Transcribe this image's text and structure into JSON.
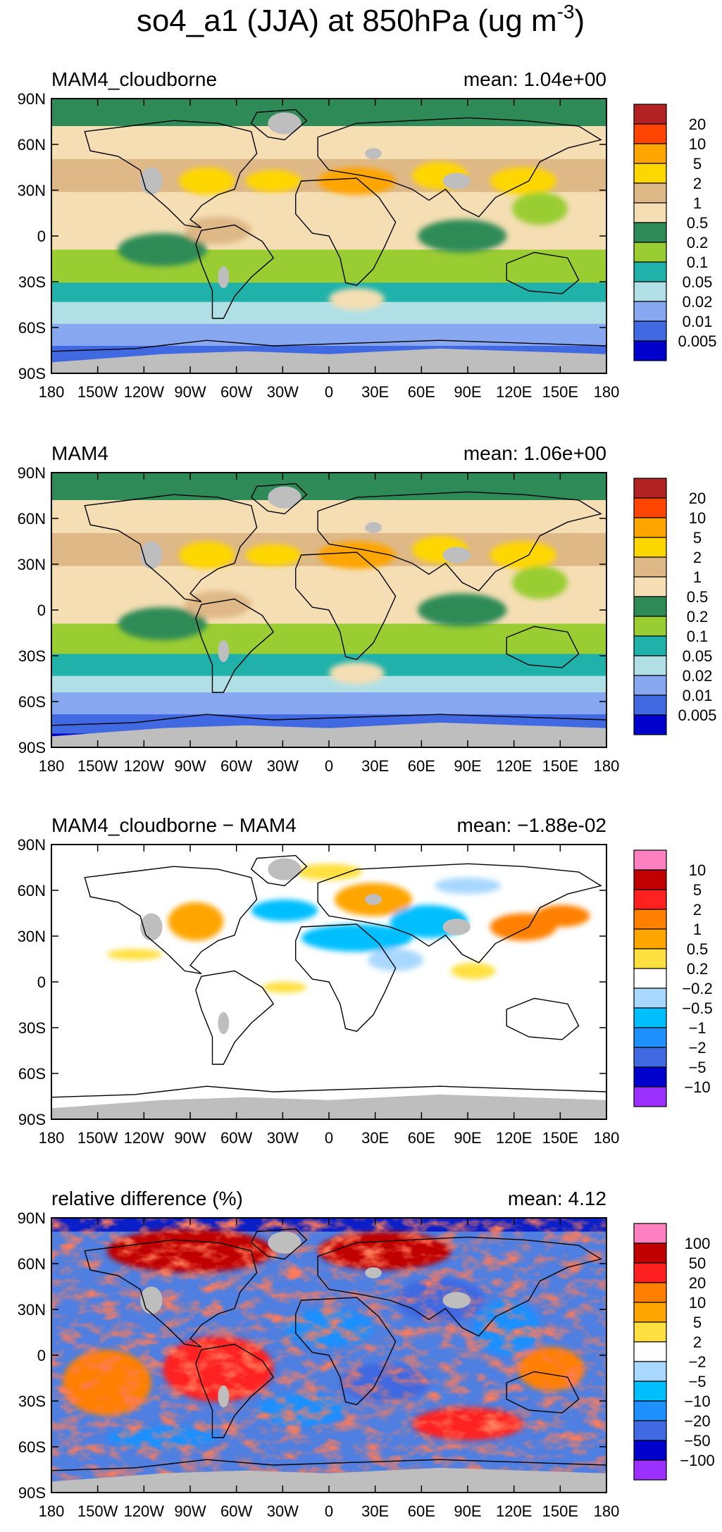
{
  "title": {
    "main": "so4_a1 (JJA) at 850hPa (ug m",
    "sup": "-3",
    "close": ")"
  },
  "lat_labels": [
    "90N",
    "60N",
    "30N",
    "0",
    "30S",
    "60S",
    "90S"
  ],
  "lon_labels": [
    "180",
    "150W",
    "120W",
    "90W",
    "60W",
    "30W",
    "0",
    "30E",
    "60E",
    "90E",
    "120E",
    "150E",
    "180"
  ],
  "panels": [
    {
      "name": "MAM4_cloudborne",
      "mean_label": "mean:",
      "mean_value": "1.04e+00",
      "colorbar": {
        "colors": [
          "#b22222",
          "#ff4500",
          "#ffa500",
          "#ffd700",
          "#deb887",
          "#f5deb3",
          "#2e8b57",
          "#9acd32",
          "#20b2aa",
          "#b0e0e6",
          "#87a8f0",
          "#4169e1",
          "#0000cd"
        ],
        "labels": [
          "20",
          "10",
          "5",
          "2",
          "1",
          "0.5",
          "0.2",
          "0.1",
          "0.05",
          "0.02",
          "0.01",
          "0.005"
        ]
      }
    },
    {
      "name": "MAM4",
      "mean_label": "mean:",
      "mean_value": "1.06e+00",
      "colorbar": {
        "colors": [
          "#b22222",
          "#ff4500",
          "#ffa500",
          "#ffd700",
          "#deb887",
          "#f5deb3",
          "#2e8b57",
          "#9acd32",
          "#20b2aa",
          "#b0e0e6",
          "#87a8f0",
          "#4169e1",
          "#0000cd"
        ],
        "labels": [
          "20",
          "10",
          "5",
          "2",
          "1",
          "0.5",
          "0.2",
          "0.1",
          "0.05",
          "0.02",
          "0.01",
          "0.005"
        ]
      }
    },
    {
      "name": "MAM4_cloudborne − MAM4",
      "mean_label": "mean:",
      "mean_value": "−1.88e-02",
      "colorbar": {
        "colors": [
          "#ff80c0",
          "#c00000",
          "#ff2020",
          "#ff8000",
          "#ffa500",
          "#ffe040",
          "#ffffff",
          "#a8d8ff",
          "#00bfff",
          "#1e90ff",
          "#4169e1",
          "#0000cd",
          "#9b30ff"
        ],
        "labels": [
          "10",
          "5",
          "2",
          "1",
          "0.5",
          "0.2",
          "−0.2",
          "−0.5",
          "−1",
          "−2",
          "−5",
          "−10"
        ]
      }
    },
    {
      "name": "relative difference (%)",
      "mean_label": "mean:",
      "mean_value": "4.12",
      "colorbar": {
        "colors": [
          "#ff80c0",
          "#c00000",
          "#ff2020",
          "#ff8000",
          "#ffa500",
          "#ffe040",
          "#ffffff",
          "#a8d8ff",
          "#00bfff",
          "#1e90ff",
          "#4169e1",
          "#0000cd",
          "#9b30ff"
        ],
        "labels": [
          "100",
          "50",
          "20",
          "10",
          "5",
          "2",
          "−2",
          "−5",
          "−10",
          "−20",
          "−50",
          "−100"
        ]
      }
    }
  ]
}
